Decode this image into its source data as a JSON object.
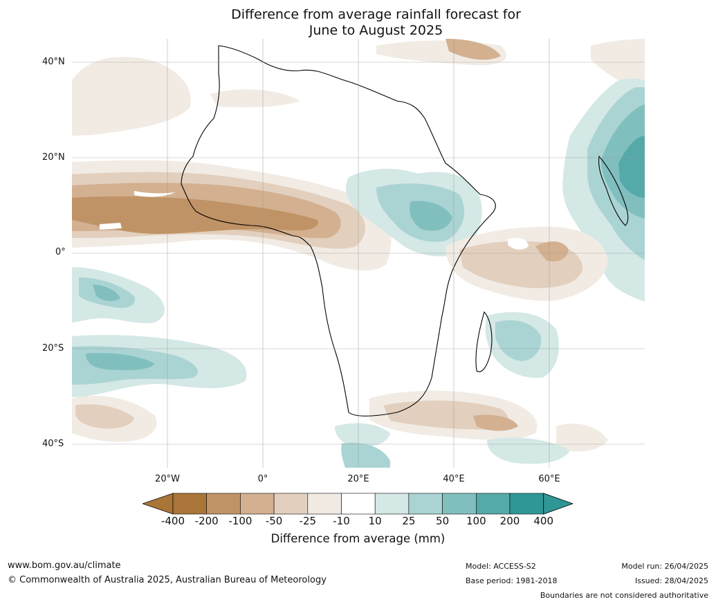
{
  "title": {
    "line1": "Difference from average rainfall forecast for",
    "line2": "June to August 2025"
  },
  "map": {
    "lat_labels": [
      "40°N",
      "20°N",
      "0°",
      "20°S",
      "40°S"
    ],
    "lon_labels": [
      "20°W",
      "0°",
      "20°E",
      "40°E",
      "60°E"
    ],
    "extent": {
      "lon_min": -40,
      "lon_max": 80,
      "lat_min": -45,
      "lat_max": 45
    }
  },
  "legend": {
    "title": "Difference from average (mm)",
    "ticks": [
      "-400",
      "-200",
      "-100",
      "-50",
      "-25",
      "-10",
      "10",
      "25",
      "50",
      "100",
      "200",
      "400"
    ],
    "colors": [
      "#a97539",
      "#c09366",
      "#d3b090",
      "#e2cfbd",
      "#f1ebe4",
      "#ffffff",
      "#d4e8e6",
      "#aad4d3",
      "#80bfbe",
      "#56a9a9",
      "#2f9796"
    ],
    "extend_low_color": "#a97539",
    "extend_high_color": "#2f9796"
  },
  "footer": {
    "website": "www.bom.gov.au/climate",
    "copyright": "© Commonwealth of Australia 2025, Australian Bureau of Meteorology",
    "model": "Model: ACCESS-S2",
    "base_period": "Base period: 1981-2018",
    "model_run": "Model run: 26/04/2025",
    "issued": "Issued: 28/04/2025",
    "disclaimer": "Boundaries are not considered authoritative"
  }
}
